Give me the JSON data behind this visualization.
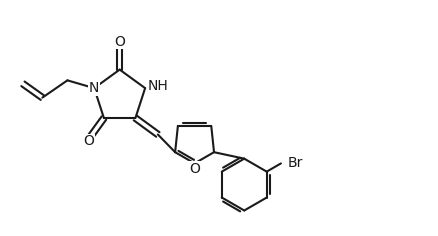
{
  "background_color": "#ffffff",
  "line_color": "#1a1a1a",
  "line_width": 1.5,
  "font_size": 9,
  "fig_width": 4.38,
  "fig_height": 2.36,
  "dpi": 100,
  "xlim": [
    0,
    10
  ],
  "ylim": [
    0,
    5.4
  ]
}
